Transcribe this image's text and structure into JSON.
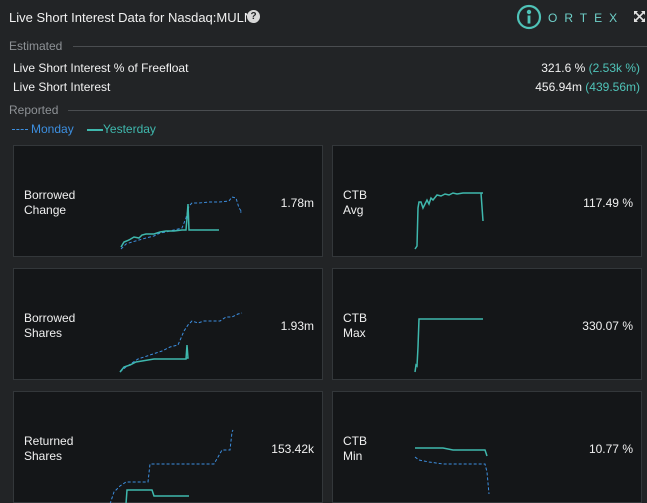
{
  "header": {
    "title": "Live Short Interest Data for Nasdaq:MULN",
    "help_icon": "question-circle-icon",
    "brand": "ORTEX",
    "expand_icon": "expand-arrows-icon"
  },
  "estimated": {
    "label": "Estimated",
    "rows": [
      {
        "label": "Live Short Interest % of Freefloat",
        "value": "321.6 %",
        "paren": "(2.53k %)"
      },
      {
        "label": "Live Short Interest",
        "value": "456.94m",
        "paren": "(439.56m)"
      }
    ]
  },
  "reported": {
    "label": "Reported",
    "legend": [
      {
        "label": "Monday",
        "style": "dashed",
        "color": "#3d8fe0"
      },
      {
        "label": "Yesterday",
        "style": "solid",
        "color": "#3fb8ad"
      }
    ]
  },
  "cards": [
    {
      "label_line1": "Borrowed",
      "label_line2": "Change",
      "value": "1.78m"
    },
    {
      "label_line1": "CTB",
      "label_line2": "Avg",
      "value": "117.49 %"
    },
    {
      "label_line1": "Borrowed",
      "label_line2": "Shares",
      "value": "1.93m"
    },
    {
      "label_line1": "CTB",
      "label_line2": "Max",
      "value": "330.07 %"
    },
    {
      "label_line1": "Returned",
      "label_line2": "Shares",
      "value": "153.42k"
    },
    {
      "label_line1": "CTB",
      "label_line2": "Min",
      "value": "10.77 %"
    }
  ],
  "colors": {
    "monday": "#3d8fe0",
    "yesterday": "#3fb8ad",
    "accent": "#4fc3b8"
  }
}
